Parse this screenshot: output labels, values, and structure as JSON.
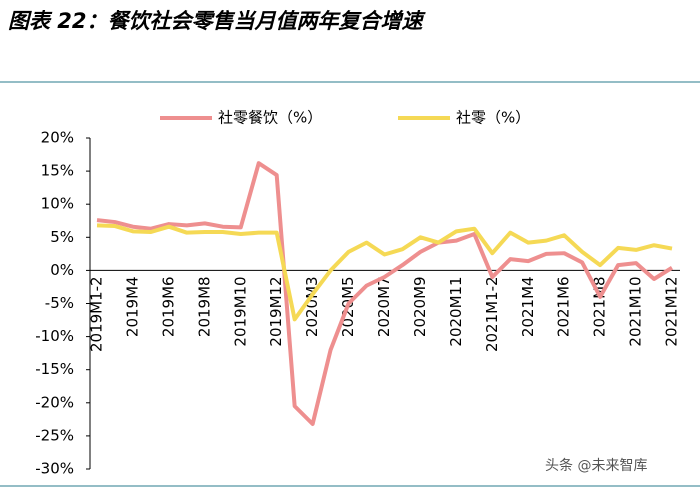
{
  "chart_data": {
    "type": "line",
    "title": "图表 22：餐饮社会零售当月值两年复合增速",
    "watermark": "头条 @未来智库",
    "categories": [
      "2019M1-2",
      null,
      "2019M4",
      null,
      "2019M6",
      null,
      "2019M8",
      null,
      "2019M10",
      null,
      "2019M12",
      null,
      "2020M3",
      null,
      "2020M5",
      null,
      "2020M7",
      null,
      "2020M9",
      null,
      "2020M11",
      null,
      "2021M1-2",
      null,
      "2021M4",
      null,
      "2021M6",
      null,
      "2021M8",
      null,
      "2021M10",
      null,
      "2021M12"
    ],
    "series": [
      {
        "name": "社零餐饮（%）",
        "color": "#ee8f8f",
        "values": [
          7.6,
          7.3,
          6.6,
          6.3,
          7.0,
          6.8,
          7.1,
          6.6,
          6.5,
          16.2,
          14.4,
          -20.5,
          -23.2,
          -12.0,
          -5.0,
          -2.3,
          -1.0,
          0.8,
          2.8,
          4.2,
          4.5,
          5.5,
          -1.0,
          1.7,
          1.4,
          2.5,
          2.6,
          1.2,
          -4.0,
          0.8,
          1.1,
          -1.3,
          0.4
        ]
      },
      {
        "name": "社零（%）",
        "color": "#f5d955",
        "values": [
          6.8,
          6.7,
          5.9,
          5.8,
          6.6,
          5.7,
          5.8,
          5.8,
          5.5,
          5.7,
          5.7,
          -7.4,
          -3.6,
          0.0,
          2.8,
          4.2,
          2.4,
          3.2,
          5.0,
          4.2,
          5.9,
          6.3,
          2.6,
          5.7,
          4.2,
          4.5,
          5.3,
          2.8,
          0.8,
          3.4,
          3.1,
          3.8,
          3.3
        ]
      }
    ],
    "ylim": [
      -30,
      20
    ],
    "yticks": [
      {
        "value": 20,
        "label": "20%"
      },
      {
        "value": 15,
        "label": "15%"
      },
      {
        "value": 10,
        "label": "10%"
      },
      {
        "value": 5,
        "label": "5%"
      },
      {
        "value": 0,
        "label": "0%"
      },
      {
        "value": -5,
        "label": "-5%"
      },
      {
        "value": -10,
        "label": "-10%"
      },
      {
        "value": -15,
        "label": "-15%"
      },
      {
        "value": -20,
        "label": "-20%"
      },
      {
        "value": -25,
        "label": "-25%"
      },
      {
        "value": -30,
        "label": "-30%"
      }
    ],
    "legend": "top"
  }
}
